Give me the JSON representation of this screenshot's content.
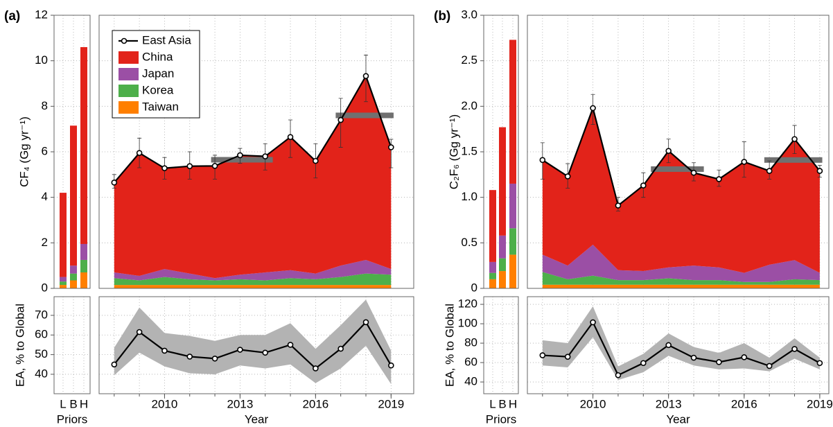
{
  "chart_data": [
    {
      "type": "stacked_area",
      "panel_label": "(a)",
      "ylabel": "CF₄ (Gg yr⁻¹)",
      "xlabel": "Year",
      "legend": true,
      "x": [
        2008,
        2009,
        2010,
        2011,
        2012,
        2013,
        2014,
        2015,
        2016,
        2017,
        2018,
        2019
      ],
      "xlim": [
        2007.4,
        2019.9
      ],
      "xticks": [
        2010,
        2013,
        2016,
        2019
      ],
      "ylim": [
        0,
        12
      ],
      "yticks": [
        0,
        2,
        4,
        6,
        8,
        10,
        12
      ],
      "priors": {
        "label": "Priors",
        "categories": [
          "L",
          "B",
          "H"
        ]
      },
      "series": [
        {
          "name": "China",
          "color": "#e2231a",
          "values": [
            3.95,
            5.4,
            4.43,
            4.72,
            4.93,
            5.25,
            5.1,
            5.85,
            4.95,
            6.4,
            8.08,
            5.35
          ],
          "prior_values": [
            3.7,
            6.15,
            8.65
          ]
        },
        {
          "name": "Japan",
          "color": "#9b4fa5",
          "values": [
            0.25,
            0.2,
            0.35,
            0.25,
            0.1,
            0.2,
            0.35,
            0.35,
            0.25,
            0.5,
            0.6,
            0.25
          ],
          "prior_values": [
            0.2,
            0.35,
            0.7
          ]
        },
        {
          "name": "Korea",
          "color": "#4daf4a",
          "values": [
            0.3,
            0.2,
            0.35,
            0.25,
            0.2,
            0.25,
            0.2,
            0.3,
            0.25,
            0.35,
            0.5,
            0.45
          ],
          "prior_values": [
            0.15,
            0.3,
            0.55
          ]
        },
        {
          "name": "Taiwan",
          "color": "#ff7f00",
          "values": [
            0.15,
            0.15,
            0.15,
            0.15,
            0.15,
            0.15,
            0.15,
            0.15,
            0.15,
            0.15,
            0.15,
            0.15
          ],
          "prior_values": [
            0.15,
            0.35,
            0.7
          ]
        }
      ],
      "total": {
        "name": "East Asia",
        "color": "#000000",
        "values": [
          4.65,
          5.95,
          5.28,
          5.37,
          5.38,
          5.85,
          5.8,
          6.65,
          5.6,
          7.4,
          9.33,
          6.2
        ],
        "err_low": [
          4.4,
          5.3,
          4.8,
          4.8,
          4.8,
          5.5,
          5.2,
          5.75,
          4.85,
          6.2,
          8.2,
          5.3
        ],
        "err_high": [
          5.0,
          6.6,
          5.75,
          6.0,
          5.85,
          6.15,
          6.35,
          7.4,
          6.35,
          8.35,
          10.25,
          6.55
        ]
      },
      "reference_bars": {
        "color": "#707070",
        "bars": [
          {
            "x0": 2011.85,
            "x1": 2014.3,
            "value": 5.65
          },
          {
            "x0": 2016.8,
            "x1": 2019.1,
            "value": 7.6
          }
        ]
      },
      "lower": {
        "ylabel": "EA, % to Global",
        "ylim": [
          30.1,
          79.5
        ],
        "yticks": [
          40,
          50,
          60,
          70
        ],
        "band_color": "#b3b3b3",
        "values": [
          45,
          61.5,
          52,
          49,
          48,
          52.5,
          51,
          55,
          43,
          53,
          66.5,
          44.5
        ],
        "band_low": [
          39.5,
          51,
          44,
          40.5,
          40,
          44.5,
          43,
          45,
          35.5,
          43,
          54.5,
          35
        ],
        "band_high": [
          53.5,
          74,
          61,
          59.5,
          57,
          60,
          60,
          66,
          53,
          65,
          78,
          52
        ]
      }
    },
    {
      "type": "stacked_area",
      "panel_label": "(b)",
      "ylabel": "C₂F₆ (Gg yr⁻¹)",
      "xlabel": "Year",
      "legend": false,
      "x": [
        2008,
        2009,
        2010,
        2011,
        2012,
        2013,
        2014,
        2015,
        2016,
        2017,
        2018,
        2019
      ],
      "xlim": [
        2007.4,
        2019.36
      ],
      "xticks": [
        2010,
        2013,
        2016,
        2019
      ],
      "ylim": [
        0,
        3
      ],
      "yticks": [
        0,
        0.5,
        {
          "value": 1,
          "label": "1.0"
        },
        1.5,
        {
          "value": 2,
          "label": "2.0"
        },
        2.5,
        {
          "value": 3,
          "label": "3.0"
        }
      ],
      "priors": {
        "label": "Priors",
        "categories": [
          "L",
          "B",
          "H"
        ]
      },
      "series": [
        {
          "color": "#e2231a",
          "values": [
            1.04,
            0.98,
            1.5,
            0.71,
            0.94,
            1.28,
            1.02,
            0.97,
            1.22,
            1.03,
            1.33,
            1.12
          ],
          "prior_values": [
            0.79,
            1.19,
            1.58
          ]
        },
        {
          "color": "#9b4fa5",
          "values": [
            0.19,
            0.15,
            0.34,
            0.11,
            0.1,
            0.12,
            0.16,
            0.14,
            0.1,
            0.19,
            0.21,
            0.08
          ],
          "prior_values": [
            0.12,
            0.25,
            0.49
          ]
        },
        {
          "color": "#4daf4a",
          "values": [
            0.14,
            0.06,
            0.1,
            0.05,
            0.05,
            0.07,
            0.05,
            0.05,
            0.03,
            0.03,
            0.06,
            0.05
          ],
          "prior_values": [
            0.07,
            0.14,
            0.29
          ]
        },
        {
          "color": "#ff7f00",
          "values": [
            0.04,
            0.04,
            0.04,
            0.04,
            0.04,
            0.04,
            0.04,
            0.04,
            0.04,
            0.04,
            0.04,
            0.04
          ],
          "prior_values": [
            0.1,
            0.19,
            0.37
          ]
        }
      ],
      "total": {
        "color": "#000000",
        "values": [
          1.41,
          1.23,
          1.98,
          0.91,
          1.13,
          1.51,
          1.27,
          1.2,
          1.39,
          1.29,
          1.64,
          1.29
        ],
        "err_low": [
          1.2,
          1.1,
          1.8,
          0.85,
          1.0,
          1.38,
          1.18,
          1.12,
          1.22,
          1.2,
          1.48,
          1.22
        ],
        "err_high": [
          1.6,
          1.37,
          2.13,
          1.0,
          1.27,
          1.64,
          1.38,
          1.3,
          1.61,
          1.4,
          1.79,
          1.35
        ]
      },
      "reference_bars": {
        "color": "#707070",
        "bars": [
          {
            "x0": 2012.3,
            "x1": 2014.4,
            "value": 1.31
          },
          {
            "x0": 2016.8,
            "x1": 2019.1,
            "value": 1.41
          }
        ]
      },
      "lower": {
        "ylabel": "EA, % to Global",
        "ylim": [
          27.9,
          127.9
        ],
        "yticks": [
          40,
          60,
          80,
          100,
          120
        ],
        "band_color": "#b3b3b3",
        "values": [
          67.5,
          66,
          101.5,
          47,
          59.5,
          78,
          65,
          60.5,
          65.5,
          56.5,
          74,
          59.5
        ],
        "band_low": [
          57,
          55,
          86,
          42,
          50,
          67,
          57,
          53,
          54,
          51,
          64,
          53
        ],
        "band_high": [
          83,
          80,
          118,
          56,
          69,
          90,
          76,
          70,
          80,
          65,
          85,
          65
        ]
      }
    }
  ]
}
